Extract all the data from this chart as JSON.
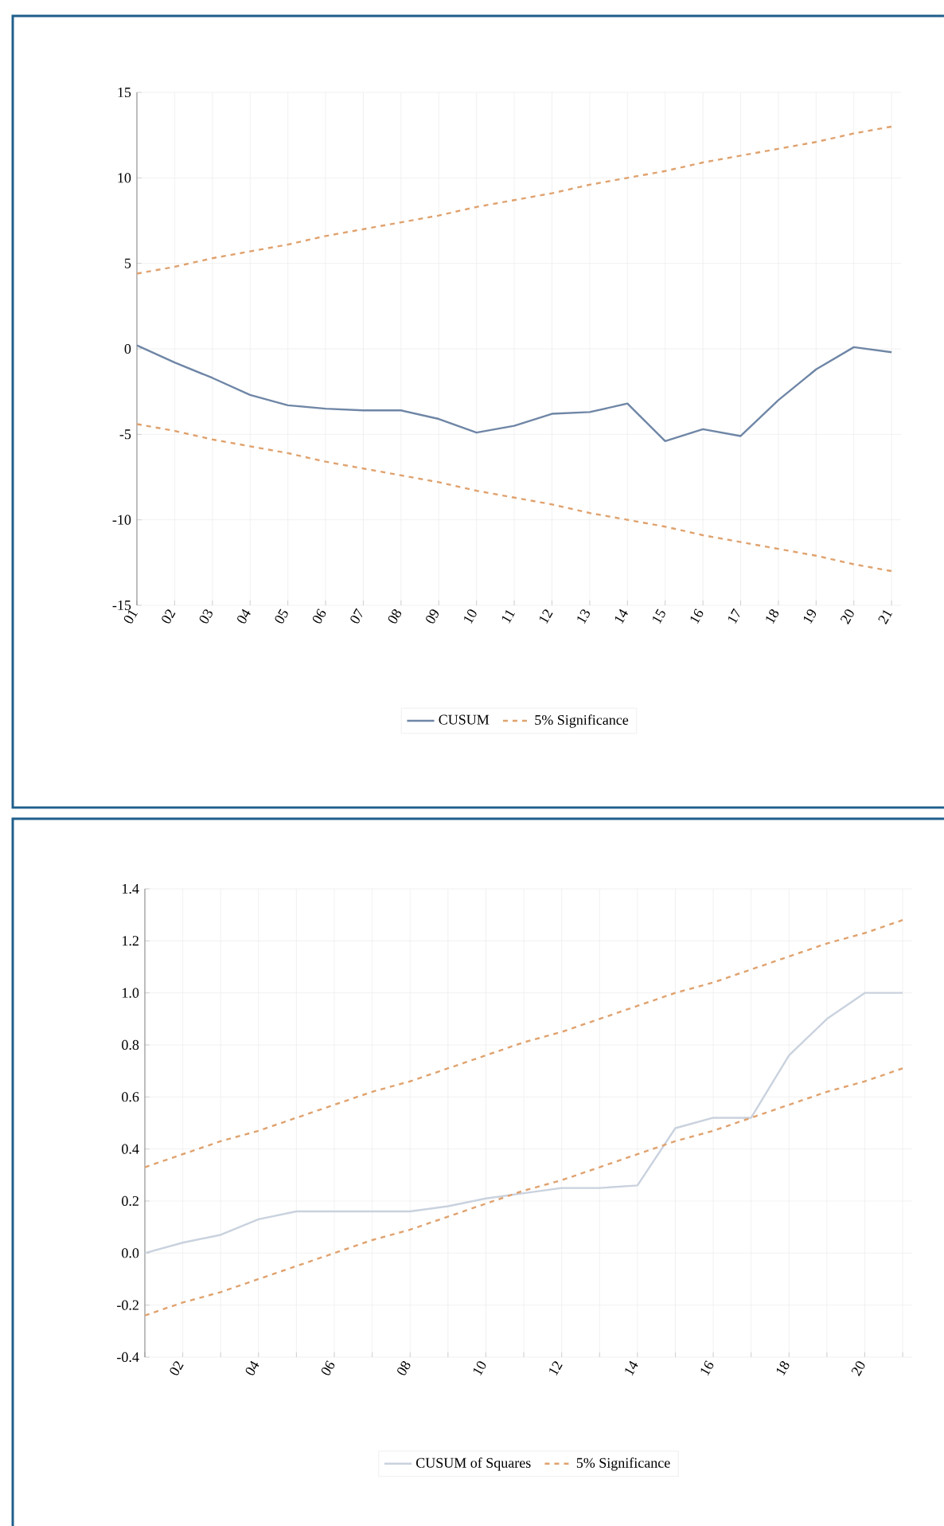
{
  "chart_data": [
    {
      "type": "line",
      "categories": [
        "01",
        "02",
        "03",
        "04",
        "05",
        "06",
        "07",
        "08",
        "09",
        "10",
        "11",
        "12",
        "13",
        "14",
        "15",
        "16",
        "17",
        "18",
        "19",
        "20",
        "21"
      ],
      "series": [
        {
          "name": "CUSUM",
          "color": "#6f86a6",
          "line_style": "solid",
          "values": [
            0.2,
            -0.8,
            -1.7,
            -2.7,
            -3.3,
            -3.5,
            -3.6,
            -3.6,
            -4.1,
            -4.9,
            -4.5,
            -3.8,
            -3.7,
            -3.2,
            -5.4,
            -4.7,
            -5.1,
            -3.0,
            -1.2,
            0.1,
            -0.2
          ]
        },
        {
          "name": "5% Significance",
          "color": "#e0a26e",
          "line_style": "dashed",
          "values": [
            4.4,
            4.8,
            5.3,
            5.7,
            6.1,
            6.6,
            7.0,
            7.4,
            7.8,
            8.3,
            8.7,
            9.1,
            9.6,
            10.0,
            10.4,
            10.9,
            11.3,
            11.7,
            12.1,
            12.6,
            13.0
          ]
        },
        {
          "color": "#e0a26e",
          "line_style": "dashed",
          "values": [
            -4.4,
            -4.8,
            -5.3,
            -5.7,
            -6.1,
            -6.6,
            -7.0,
            -7.4,
            -7.8,
            -8.3,
            -8.7,
            -9.1,
            -9.6,
            -10.0,
            -10.4,
            -10.9,
            -11.3,
            -11.7,
            -12.1,
            -12.6,
            -13.0
          ]
        }
      ],
      "ylim": [
        -15,
        15
      ],
      "yticks": [
        -15,
        -10,
        -5,
        0,
        5,
        10,
        15
      ],
      "grid": true,
      "legend": "bottom"
    },
    {
      "type": "line",
      "categories": [
        null,
        "02",
        null,
        "04",
        null,
        "06",
        null,
        "08",
        null,
        "10",
        null,
        "12",
        null,
        "14",
        null,
        "16",
        null,
        "18",
        null,
        "20",
        null
      ],
      "series": [
        {
          "name": "CUSUM of Squares",
          "color": "#c9d2de",
          "line_style": "solid",
          "values": [
            0.0,
            0.04,
            0.07,
            0.13,
            0.16,
            0.16,
            0.16,
            0.16,
            0.18,
            0.21,
            0.23,
            0.25,
            0.25,
            0.26,
            0.48,
            0.52,
            0.52,
            0.76,
            0.9,
            1.0,
            1.0
          ]
        },
        {
          "name": "5% Significance",
          "color": "#e0a26e",
          "line_style": "dashed",
          "values": [
            0.33,
            0.38,
            0.43,
            0.47,
            0.52,
            0.57,
            0.62,
            0.66,
            0.71,
            0.76,
            0.81,
            0.85,
            0.9,
            0.95,
            1.0,
            1.04,
            1.09,
            1.14,
            1.19,
            1.23,
            1.28
          ]
        },
        {
          "color": "#e0a26e",
          "line_style": "dashed",
          "values": [
            -0.24,
            -0.19,
            -0.15,
            -0.1,
            -0.05,
            0.0,
            0.05,
            0.09,
            0.14,
            0.19,
            0.24,
            0.28,
            0.33,
            0.38,
            0.43,
            0.47,
            0.52,
            0.57,
            0.62,
            0.66,
            0.71
          ]
        }
      ],
      "ylim": [
        -0.4,
        1.4
      ],
      "yticks": [
        -0.4,
        -0.2,
        {
          "value": 0,
          "label": "0.0"
        },
        0.2,
        0.4,
        0.6,
        0.8,
        {
          "value": 1,
          "label": "1.0"
        },
        1.2,
        1.4
      ],
      "grid": true,
      "legend": "bottom"
    }
  ]
}
